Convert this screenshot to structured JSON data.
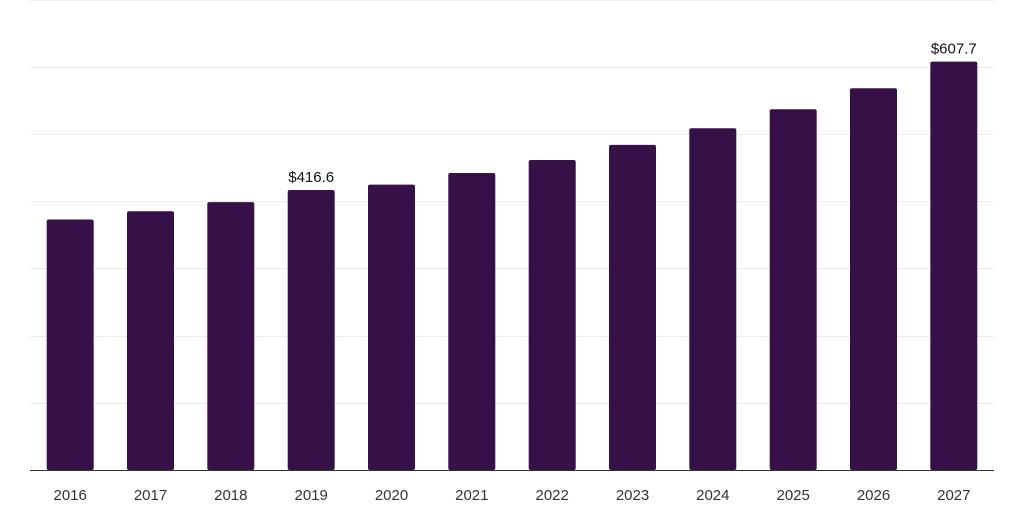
{
  "chart_data": {
    "type": "bar",
    "title": "",
    "xlabel": "",
    "ylabel": "",
    "categories": [
      "2016",
      "2017",
      "2018",
      "2019",
      "2020",
      "2021",
      "2022",
      "2023",
      "2024",
      "2025",
      "2026",
      "2027"
    ],
    "values": [
      372.8,
      385.1,
      398.6,
      416.6,
      424.7,
      441.9,
      461.3,
      483.8,
      508.5,
      536.7,
      568.0,
      607.7
    ],
    "data_labels": [
      {
        "category": "2019",
        "text": "$416.6"
      },
      {
        "category": "2027",
        "text": "$607.7"
      }
    ],
    "ylim": [
      0,
      700
    ],
    "y_gridlines": [
      100,
      200,
      300,
      400,
      500,
      600,
      700
    ],
    "grid": true,
    "legend": "none",
    "bar_color": "#361147"
  }
}
